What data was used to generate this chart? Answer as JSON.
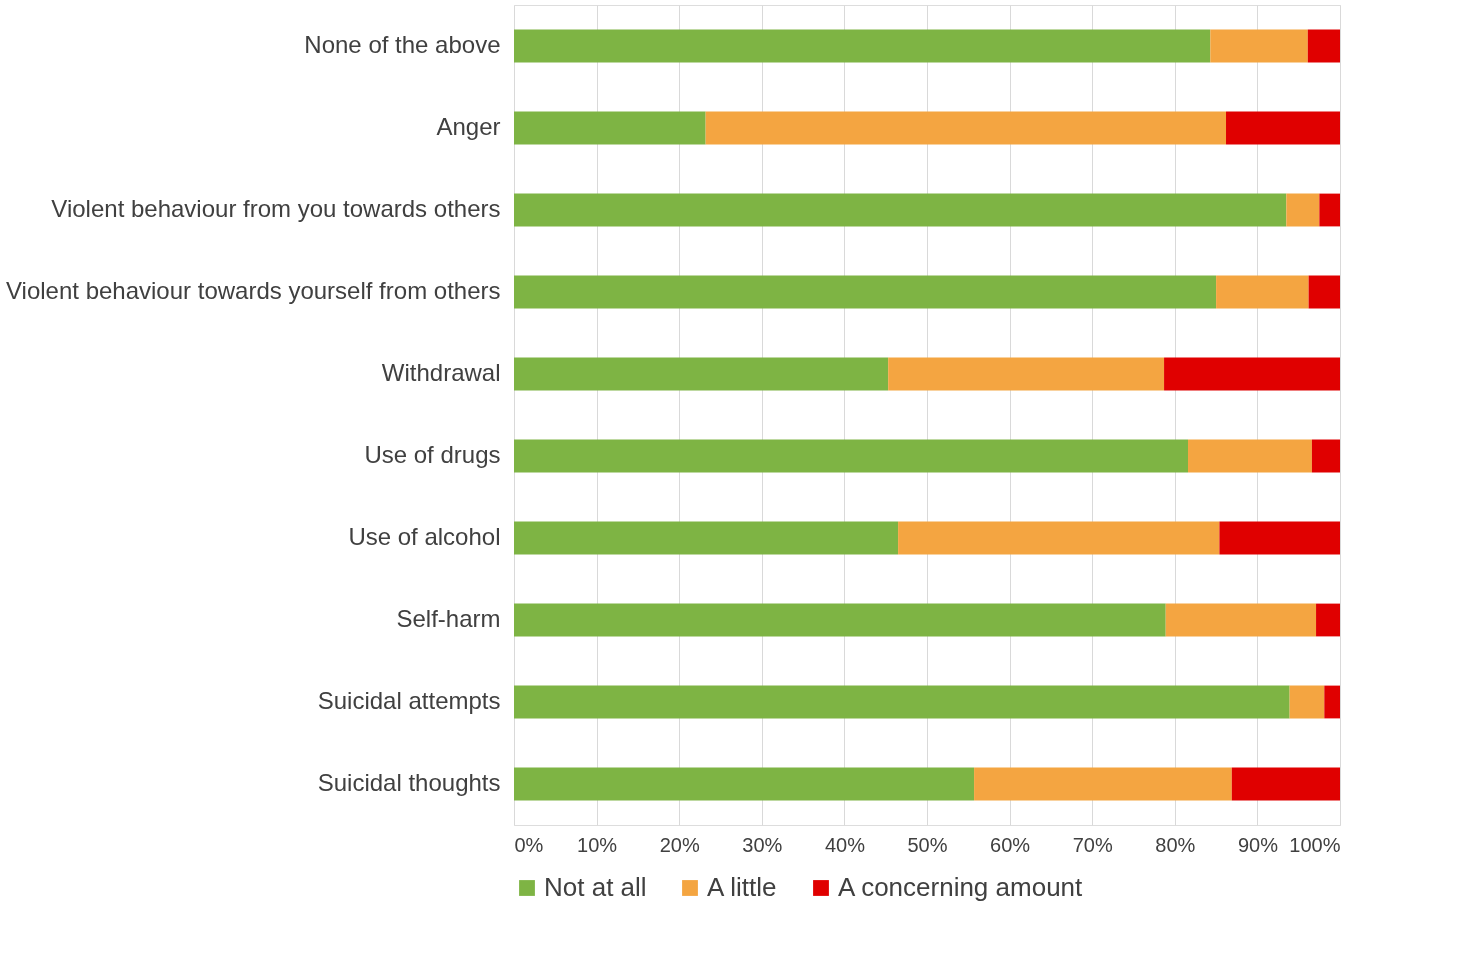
{
  "chart_data": {
    "type": "bar",
    "orientation": "horizontal",
    "stacked": true,
    "categories": [
      "None of the above",
      "Anger",
      "Violent behaviour from you towards others",
      "Violent behaviour towards yourself from others",
      "Withdrawal",
      "Use of drugs",
      "Use of alcohol",
      "Self-harm",
      "Suicidal attempts",
      "Suicidal thoughts"
    ],
    "series": [
      {
        "name": "Not at all",
        "color": "#7eb444",
        "values": [
          84.3,
          23.2,
          93.5,
          85.0,
          45.3,
          81.6,
          46.5,
          78.9,
          93.9,
          55.7
        ]
      },
      {
        "name": "A little",
        "color": "#f4a541",
        "values": [
          11.8,
          63.0,
          4.0,
          11.2,
          33.4,
          15.0,
          38.9,
          18.2,
          4.2,
          31.2
        ]
      },
      {
        "name": "A concerning amount",
        "color": "#e00000",
        "values": [
          3.9,
          13.8,
          2.5,
          3.8,
          21.3,
          3.4,
          14.6,
          2.9,
          1.9,
          13.1
        ]
      }
    ],
    "xlim": [
      0,
      100
    ],
    "xticks": [
      {
        "value": 0,
        "label": "0%"
      },
      {
        "value": 10,
        "label": "10%"
      },
      {
        "value": 20,
        "label": "20%"
      },
      {
        "value": 30,
        "label": "30%"
      },
      {
        "value": 40,
        "label": "40%"
      },
      {
        "value": 50,
        "label": "50%"
      },
      {
        "value": 60,
        "label": "60%"
      },
      {
        "value": 70,
        "label": "70%"
      },
      {
        "value": 80,
        "label": "80%"
      },
      {
        "value": 90,
        "label": "90%"
      },
      {
        "value": 100,
        "label": "100%"
      }
    ],
    "grid": "x",
    "legend": "bottom"
  }
}
